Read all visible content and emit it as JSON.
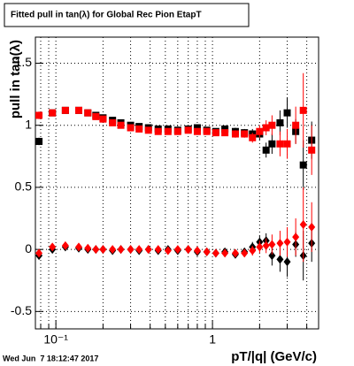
{
  "chart_data": {
    "type": "scatter",
    "title": "Fitted pull in tan(λ) for Global Rec Pion EtapT",
    "y_label": "pull in tan(λ)",
    "x_label": "pT/|q| (GeV/c)",
    "timestamp": "Wed Jun  7 18:12:47 2017",
    "x_log": true,
    "grid": true,
    "xlim": [
      0.074,
      4.76
    ],
    "ylim": [
      -0.64,
      1.71
    ],
    "xticks": [
      {
        "value": 0.1,
        "label": "10⁻¹"
      },
      1
    ],
    "xminor": [
      0.08,
      0.09,
      0.2,
      0.3,
      0.4,
      0.5,
      0.6,
      0.7,
      0.8,
      0.9,
      2,
      3,
      4
    ],
    "yticks": [
      {
        "value": -0.5,
        "label": "-0.5"
      },
      0,
      0.5,
      1,
      1.5
    ],
    "x": [
      0.078,
      0.095,
      0.115,
      0.14,
      0.16,
      0.18,
      0.2,
      0.23,
      0.26,
      0.3,
      0.34,
      0.39,
      0.45,
      0.52,
      0.6,
      0.7,
      0.8,
      0.92,
      1.05,
      1.2,
      1.4,
      1.6,
      1.8,
      2.0,
      2.2,
      2.4,
      2.7,
      3.0,
      3.4,
      3.8,
      4.3
    ],
    "series": [
      {
        "color": "#000000",
        "marker": "square",
        "values": [
          0.87,
          1.1,
          1.12,
          1.12,
          1.1,
          1.08,
          1.06,
          1.04,
          1.02,
          1.0,
          0.99,
          0.98,
          0.97,
          0.97,
          0.96,
          0.97,
          0.98,
          0.96,
          0.95,
          0.97,
          0.95,
          0.94,
          0.93,
          0.93,
          0.8,
          0.85,
          1.02,
          1.1,
          0.95,
          0.68,
          0.88
        ],
        "errors": [
          0.03,
          0.02,
          0.02,
          0.02,
          0.02,
          0.02,
          0.02,
          0.02,
          0.02,
          0.02,
          0.02,
          0.02,
          0.02,
          0.02,
          0.02,
          0.02,
          0.02,
          0.02,
          0.02,
          0.02,
          0.03,
          0.03,
          0.04,
          0.05,
          0.06,
          0.08,
          0.1,
          0.12,
          0.1,
          0.2,
          0.15
        ]
      },
      {
        "color": "#ff0000",
        "marker": "square",
        "values": [
          1.08,
          1.1,
          1.12,
          1.12,
          1.1,
          1.07,
          1.05,
          1.02,
          1.0,
          0.98,
          0.97,
          0.96,
          0.95,
          0.95,
          0.95,
          0.96,
          0.95,
          0.95,
          0.94,
          0.94,
          0.93,
          0.93,
          0.9,
          0.95,
          0.98,
          1.0,
          0.85,
          0.85,
          1.0,
          1.12,
          0.8
        ],
        "errors": [
          0.03,
          0.02,
          0.02,
          0.02,
          0.02,
          0.02,
          0.02,
          0.02,
          0.02,
          0.02,
          0.02,
          0.02,
          0.02,
          0.02,
          0.02,
          0.02,
          0.02,
          0.02,
          0.02,
          0.02,
          0.03,
          0.03,
          0.04,
          0.05,
          0.06,
          0.08,
          0.1,
          0.12,
          0.15,
          0.3,
          0.2
        ]
      },
      {
        "color": "#000000",
        "marker": "diamond",
        "values": [
          -0.05,
          0.0,
          0.02,
          0.01,
          0.0,
          0.0,
          0.0,
          -0.01,
          0.0,
          0.0,
          -0.01,
          0.0,
          -0.01,
          0.0,
          -0.01,
          0.0,
          -0.02,
          -0.02,
          -0.03,
          -0.02,
          -0.04,
          -0.02,
          0.02,
          0.06,
          0.07,
          -0.05,
          -0.08,
          -0.1,
          0.04,
          -0.05,
          0.05
        ],
        "errors": [
          0.03,
          0.02,
          0.02,
          0.02,
          0.02,
          0.02,
          0.02,
          0.02,
          0.02,
          0.02,
          0.02,
          0.02,
          0.02,
          0.02,
          0.02,
          0.02,
          0.02,
          0.02,
          0.02,
          0.02,
          0.03,
          0.03,
          0.04,
          0.05,
          0.06,
          0.08,
          0.1,
          0.12,
          0.1,
          0.2,
          0.15
        ]
      },
      {
        "color": "#ff0000",
        "marker": "diamond",
        "values": [
          -0.03,
          0.02,
          0.03,
          0.02,
          0.01,
          0.0,
          0.0,
          0.0,
          0.0,
          0.0,
          0.0,
          0.0,
          0.0,
          -0.01,
          0.0,
          0.0,
          -0.01,
          -0.02,
          -0.03,
          -0.03,
          -0.03,
          -0.03,
          -0.01,
          0.02,
          0.03,
          0.04,
          0.05,
          0.06,
          0.1,
          0.2,
          0.18
        ],
        "errors": [
          0.03,
          0.02,
          0.02,
          0.02,
          0.02,
          0.02,
          0.02,
          0.02,
          0.02,
          0.02,
          0.02,
          0.02,
          0.02,
          0.02,
          0.02,
          0.02,
          0.02,
          0.02,
          0.02,
          0.02,
          0.03,
          0.03,
          0.04,
          0.05,
          0.06,
          0.08,
          0.1,
          0.12,
          0.15,
          0.3,
          0.2
        ]
      }
    ]
  }
}
